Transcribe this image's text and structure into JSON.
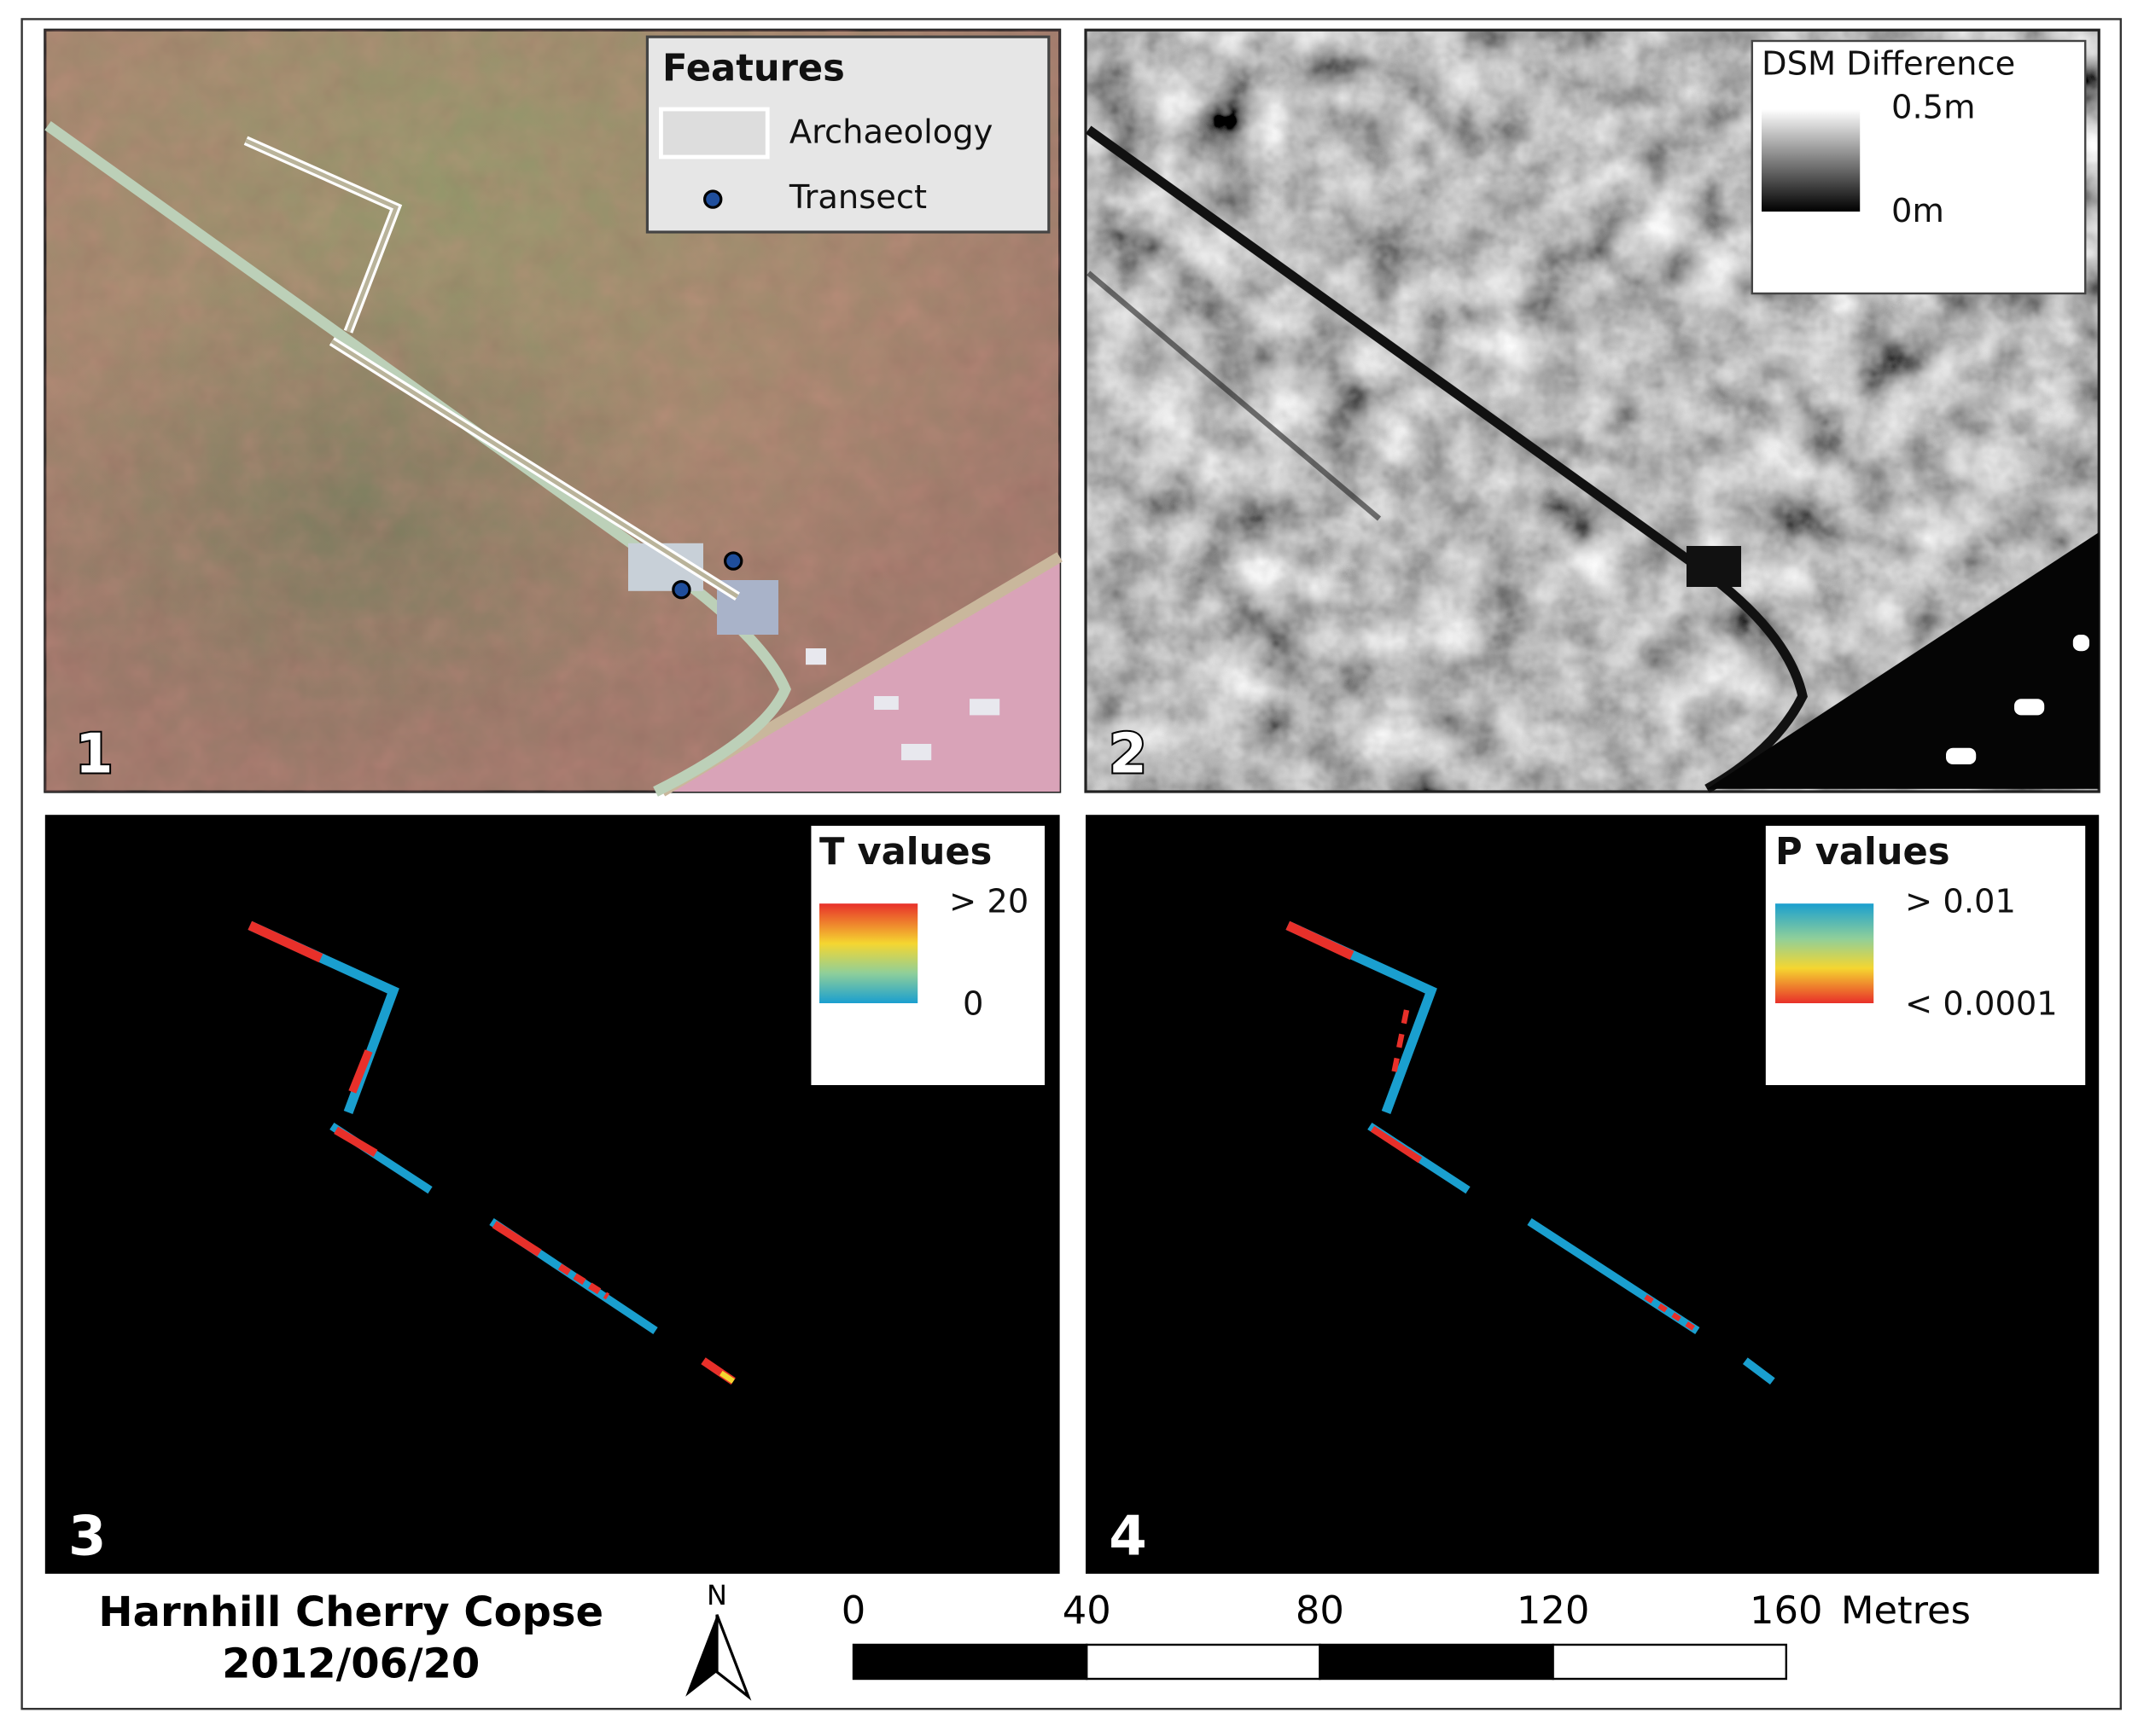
{
  "panels": [
    {
      "number": "1",
      "legend": {
        "title": "Features",
        "items": [
          {
            "label": "Archaeology"
          },
          {
            "label": "Transect"
          }
        ]
      }
    },
    {
      "number": "2",
      "legend": {
        "title": "DSM Difference",
        "max_label": "0.5m",
        "min_label": "0m"
      }
    },
    {
      "number": "3",
      "legend": {
        "title": "T values",
        "max_label": "> 20",
        "min_label": "0"
      }
    },
    {
      "number": "4",
      "legend": {
        "title": "P values",
        "max_label": "> 0.01",
        "min_label": "< 0.0001"
      }
    }
  ],
  "footer": {
    "site": "Harnhill Cherry Copse",
    "date": "2012/06/20",
    "north": "N"
  },
  "scale_bar": {
    "ticks": [
      0,
      40,
      80,
      120,
      160
    ],
    "unit": "Metres"
  }
}
